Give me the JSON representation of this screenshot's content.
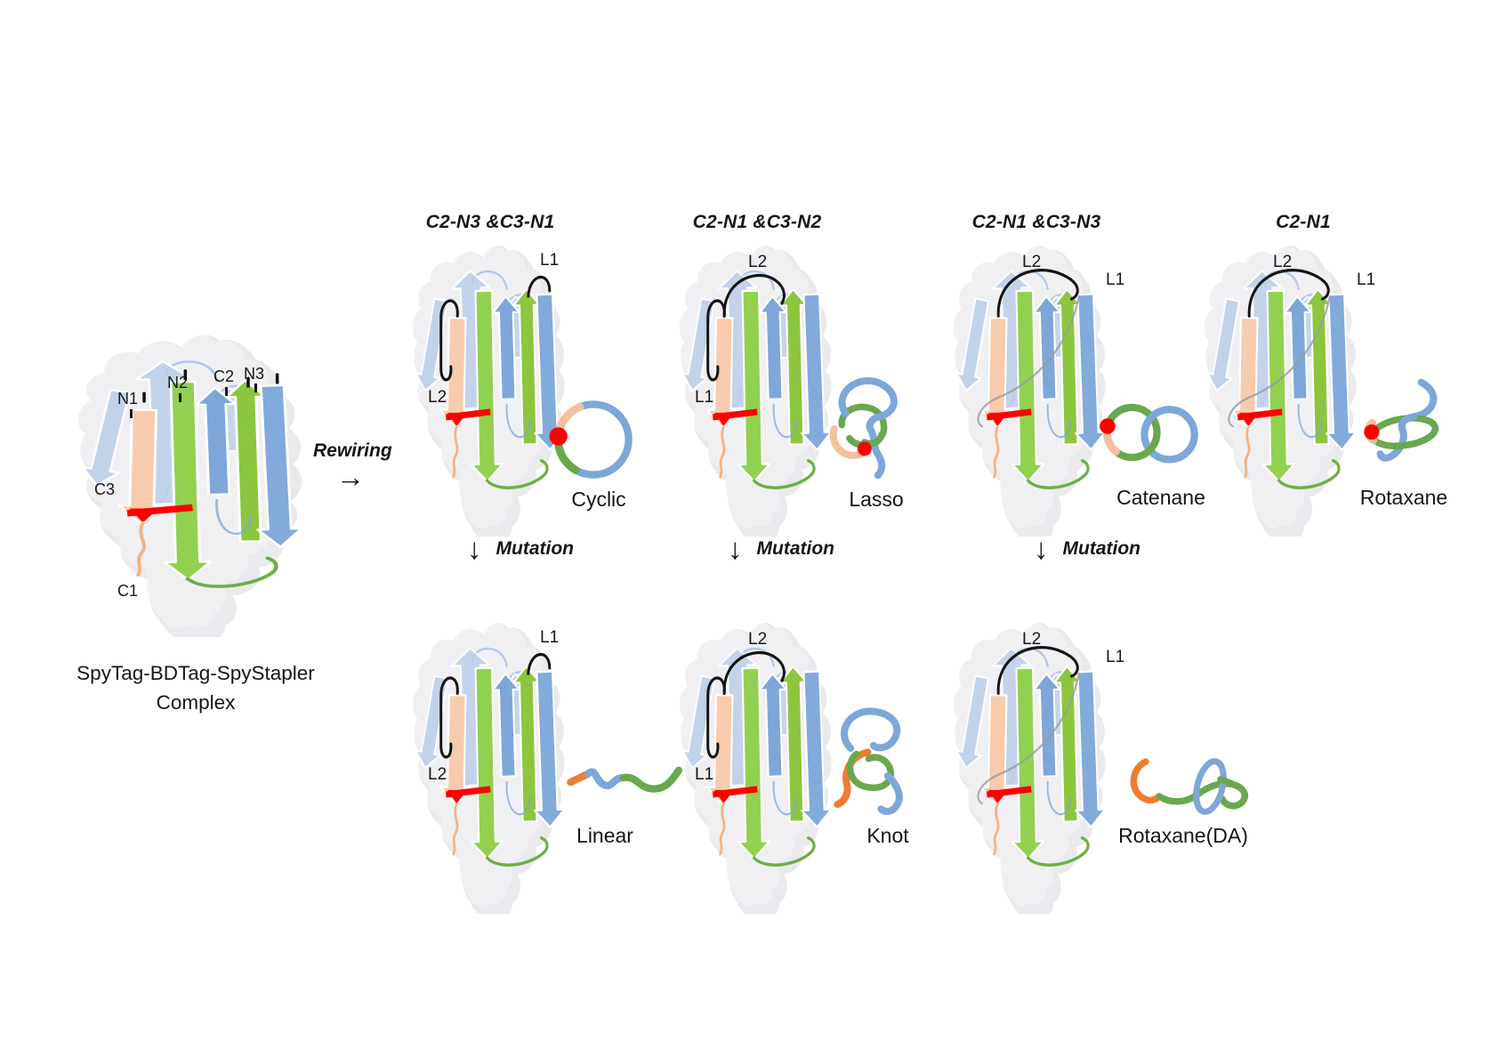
{
  "colors": {
    "blue": "#7da7d9",
    "light_blue": "#b9cde8",
    "green_arrow": "#92d050",
    "green_strand": "#6aa84f",
    "peach_arrow": "#f8cbad",
    "peach_strand": "#f4c09e",
    "orange": "#ed7d31",
    "red": "#fe0000",
    "surface_gray": "#eaeaee",
    "loop_black": "#141414",
    "gray_loop": "#9a9a9a"
  },
  "complex": {
    "caption_line1": "SpyTag-BDTag-SpyStapler",
    "caption_line2": "Complex",
    "terminals": [
      {
        "label": "N1"
      },
      {
        "label": "N2"
      },
      {
        "label": "C2"
      },
      {
        "label": "N3"
      },
      {
        "label": "C3"
      },
      {
        "label": "C1"
      }
    ]
  },
  "rewiring": {
    "label": "Rewiring",
    "arrow": "→"
  },
  "mutation_steps": [
    {
      "label": "Mutation",
      "arrow": "↓"
    },
    {
      "label": "Mutation",
      "arrow": "↓"
    },
    {
      "label": "Mutation",
      "arrow": "↓"
    }
  ],
  "top_row": [
    {
      "header": "C2-N3 &C3-N1",
      "name": "Cyclic",
      "icon": "cyclic",
      "loops": [
        {
          "label": "L2",
          "pos": "left"
        },
        {
          "label": "L1",
          "pos": "top-right"
        }
      ]
    },
    {
      "header": "C2-N1 &C3-N2",
      "name": "Lasso",
      "icon": "lasso",
      "loops": [
        {
          "label": "L2",
          "pos": "top"
        },
        {
          "label": "L1",
          "pos": "left"
        }
      ]
    },
    {
      "header": "C2-N1 &C3-N3",
      "name": "Catenane",
      "icon": "catenane",
      "loops": [
        {
          "label": "L2",
          "pos": "top"
        },
        {
          "label": "L1",
          "pos": "right"
        }
      ]
    },
    {
      "header": "C2-N1",
      "name": "Rotaxane",
      "icon": "rotaxane",
      "loops": [
        {
          "label": "L2",
          "pos": "top"
        },
        {
          "label": "L1",
          "pos": "right"
        }
      ]
    }
  ],
  "bottom_row": [
    {
      "name": "Linear",
      "icon": "linear",
      "loops": [
        {
          "label": "L2",
          "pos": "left"
        },
        {
          "label": "L1",
          "pos": "top-right"
        }
      ]
    },
    {
      "name": "Knot",
      "icon": "knot",
      "loops": [
        {
          "label": "L2",
          "pos": "top"
        },
        {
          "label": "L1",
          "pos": "left"
        }
      ]
    },
    {
      "name": "Rotaxane(DA)",
      "icon": "rotaxane-da",
      "loops": [
        {
          "label": "L2",
          "pos": "top"
        },
        {
          "label": "L1",
          "pos": "right"
        }
      ]
    }
  ]
}
